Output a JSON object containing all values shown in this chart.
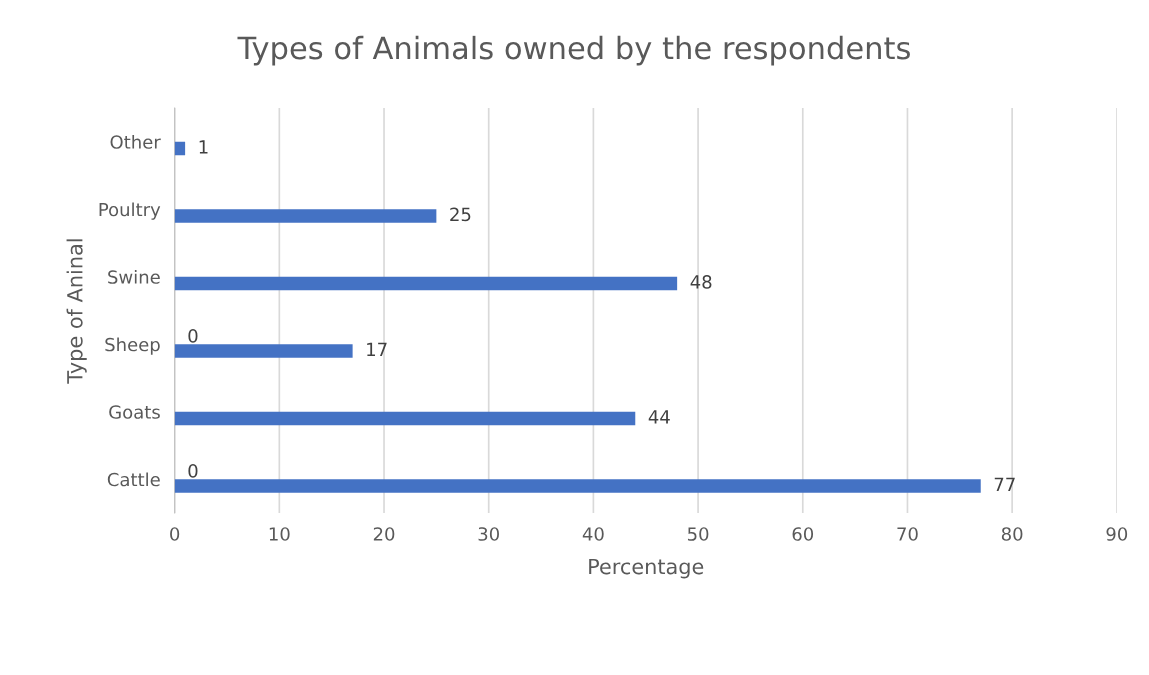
{
  "chart_data": {
    "type": "bar",
    "orientation": "horizontal",
    "title": "Types of Animals owned by the respondents",
    "xlabel": "Percentage",
    "ylabel": "Type of Aninal",
    "categories": [
      "Other",
      "Poultry",
      "Swine",
      "Sheep",
      "Goats",
      "Cattle"
    ],
    "series": [
      {
        "color": "#4472c4",
        "values": [
          1,
          25,
          48,
          17,
          44,
          77
        ]
      },
      {
        "color": "#ed7d31",
        "values": [
          null,
          null,
          null,
          0,
          null,
          0
        ]
      }
    ],
    "xlim": [
      0,
      90
    ],
    "xticks": [
      0,
      10,
      20,
      30,
      40,
      50,
      60,
      70,
      80,
      90
    ],
    "grid": "x",
    "data_labels": true
  }
}
